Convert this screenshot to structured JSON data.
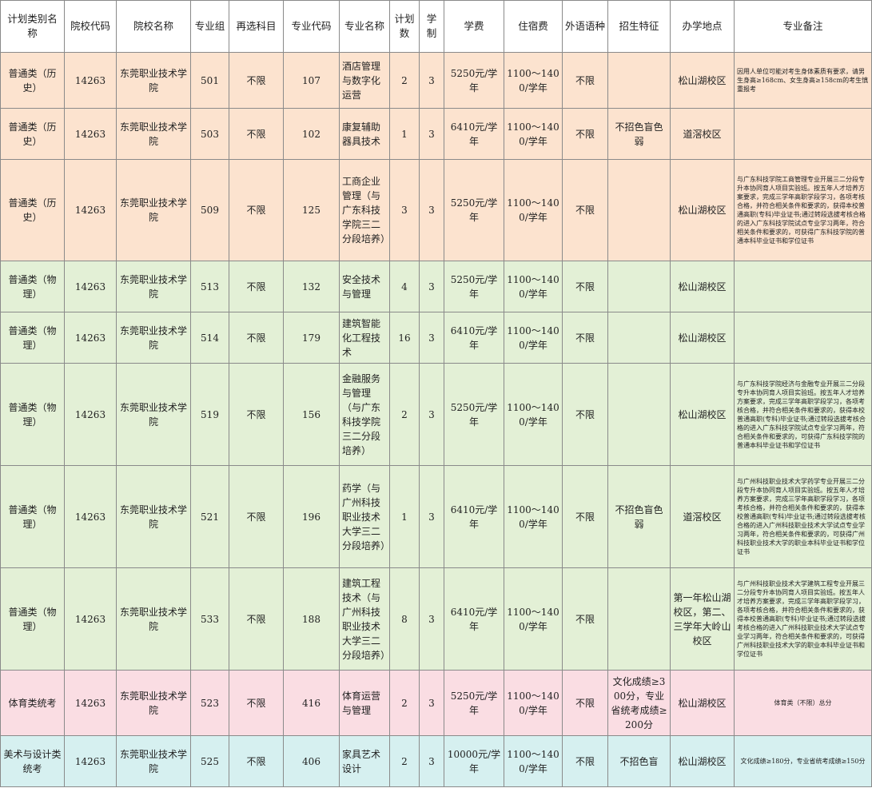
{
  "colors": {
    "history_row": "#fce3cf",
    "physics_row": "#e3f0d6",
    "sports_row": "#fadde3",
    "art_row": "#d6f0f0",
    "border": "#8a8a8a"
  },
  "headers": [
    "计划类别名称",
    "院校代码",
    "院校名称",
    "专业组",
    "再选科目",
    "专业代码",
    "专业名称",
    "计划数",
    "学制",
    "学费",
    "住宿费",
    "外语语种",
    "招生特征",
    "办学地点",
    "专业备注"
  ],
  "rows": [
    {
      "category": "普通类（历史）",
      "school_code": "14263",
      "school_name": "东莞职业技术学院",
      "group": "501",
      "subject": "不限",
      "major_code": "107",
      "major_name": "酒店管理与数字化运营",
      "plan": "2",
      "years": "3",
      "tuition": "5250元/学年",
      "dorm": "1100～1400/学年",
      "language": "不限",
      "feature": "",
      "location": "松山湖校区",
      "note": "因用人单位可能对考生身体素质有要求，请男生身高≥168cm、女生身高≥158cm的考生慎重报考"
    },
    {
      "category": "普通类（历史）",
      "school_code": "14263",
      "school_name": "东莞职业技术学院",
      "group": "503",
      "subject": "不限",
      "major_code": "102",
      "major_name": "康复辅助器具技术",
      "plan": "1",
      "years": "3",
      "tuition": "6410元/学年",
      "dorm": "1100～1400/学年",
      "language": "不限",
      "feature": "不招色盲色弱",
      "location": "道滘校区",
      "note": ""
    },
    {
      "category": "普通类（历史）",
      "school_code": "14263",
      "school_name": "东莞职业技术学院",
      "group": "509",
      "subject": "不限",
      "major_code": "125",
      "major_name": "工商企业管理（与广东科技学院三二分段培养）",
      "plan": "3",
      "years": "3",
      "tuition": "5250元/学年",
      "dorm": "1100～1400/学年",
      "language": "不限",
      "feature": "",
      "location": "松山湖校区",
      "note": "与广东科技学院工商管理专业开展三二分段专升本协同育人项目实验班。按五年人才培养方案要求，完成三学年高职学段学习，各项考核合格，并符合相关条件和要求的，获得本校普通高职(专科)毕业证书;通过转段选拔考核合格的进入广东科技学院试点专业学习两年，符合相关条件和要求的，可获得广东科技学院的普通本科毕业证书和学位证书"
    },
    {
      "category": "普通类（物理）",
      "school_code": "14263",
      "school_name": "东莞职业技术学院",
      "group": "513",
      "subject": "不限",
      "major_code": "132",
      "major_name": "安全技术与管理",
      "plan": "4",
      "years": "3",
      "tuition": "5250元/学年",
      "dorm": "1100～1400/学年",
      "language": "不限",
      "feature": "",
      "location": "松山湖校区",
      "note": ""
    },
    {
      "category": "普通类（物理）",
      "school_code": "14263",
      "school_name": "东莞职业技术学院",
      "group": "514",
      "subject": "不限",
      "major_code": "179",
      "major_name": "建筑智能化工程技术",
      "plan": "16",
      "years": "3",
      "tuition": "6410元/学年",
      "dorm": "1100～1400/学年",
      "language": "不限",
      "feature": "",
      "location": "松山湖校区",
      "note": ""
    },
    {
      "category": "普通类（物理）",
      "school_code": "14263",
      "school_name": "东莞职业技术学院",
      "group": "519",
      "subject": "不限",
      "major_code": "156",
      "major_name": "金融服务与管理（与广东科技学院三二分段培养）",
      "plan": "2",
      "years": "3",
      "tuition": "5250元/学年",
      "dorm": "1100～1400/学年",
      "language": "不限",
      "feature": "",
      "location": "松山湖校区",
      "note": "与广东科技学院经济与金融专业开展三二分段专升本协同育人项目实验班。按五年人才培养方案要求，完成三学年高职学段学习，各项考核合格，并符合相关条件和要求的，获得本校普通高职(专科)毕业证书;通过转段选拔考核合格的进入广东科技学院试点专业学习两年，符合相关条件和要求的，可获得广东科技学院的普通本科毕业证书和学位证书"
    },
    {
      "category": "普通类（物理）",
      "school_code": "14263",
      "school_name": "东莞职业技术学院",
      "group": "521",
      "subject": "不限",
      "major_code": "196",
      "major_name": "药学（与广州科技职业技术大学三二分段培养）",
      "plan": "1",
      "years": "3",
      "tuition": "6410元/学年",
      "dorm": "1100～1400/学年",
      "language": "不限",
      "feature": "不招色盲色弱",
      "location": "道滘校区",
      "note": "与广州科技职业技术大学药学专业开展三二分段专升本协同育人项目实验班。按五年人才培养方案要求，完成三学年高职学段学习，各项考核合格，并符合相关条件和要求的，获得本校普通高职(专科)毕业证书;通过转段选拔考核合格的进入广州科技职业技术大学试点专业学习两年，符合相关条件和要求的，可获得广州科技职业技术大学的职业本科毕业证书和学位证书"
    },
    {
      "category": "普通类（物理）",
      "school_code": "14263",
      "school_name": "东莞职业技术学院",
      "group": "533",
      "subject": "不限",
      "major_code": "188",
      "major_name": "建筑工程技术（与广州科技职业技术大学三二分段培养）",
      "plan": "8",
      "years": "3",
      "tuition": "6410元/学年",
      "dorm": "1100～1400/学年",
      "language": "不限",
      "feature": "",
      "location": "第一年松山湖校区，第二、三学年大岭山校区",
      "note": "与广州科技职业技术大学建筑工程专业开展三二分段专升本协同育人项目实验班。按五年人才培养方案要求，完成三学年高职学段学习，各项考核合格，并符合相关条件和要求的，获得本校普通高职(专科)毕业证书;通过转段选拔考核合格的进入广州科技职业技术大学试点专业学习两年，符合相关条件和要求的，可获得广州科技职业技术大学的职业本科毕业证书和学位证书"
    },
    {
      "category": "体育类统考",
      "school_code": "14263",
      "school_name": "东莞职业技术学院",
      "group": "523",
      "subject": "不限",
      "major_code": "416",
      "major_name": "体育运营与管理",
      "plan": "2",
      "years": "3",
      "tuition": "5250元/学年",
      "dorm": "1100～1400/学年",
      "language": "不限",
      "feature": "文化成绩≥300分，专业省统考成绩≥200分",
      "location": "松山湖校区",
      "note": "体育类（不限）总分"
    },
    {
      "category": "美术与设计类统考",
      "school_code": "14263",
      "school_name": "东莞职业技术学院",
      "group": "525",
      "subject": "不限",
      "major_code": "406",
      "major_name": "家具艺术设计",
      "plan": "2",
      "years": "3",
      "tuition": "10000元/学年",
      "dorm": "1100～1400/学年",
      "language": "不限",
      "feature": "不招色盲",
      "location": "松山湖校区",
      "note": "文化成绩≥180分，专业省统考成绩≥150分"
    }
  ]
}
